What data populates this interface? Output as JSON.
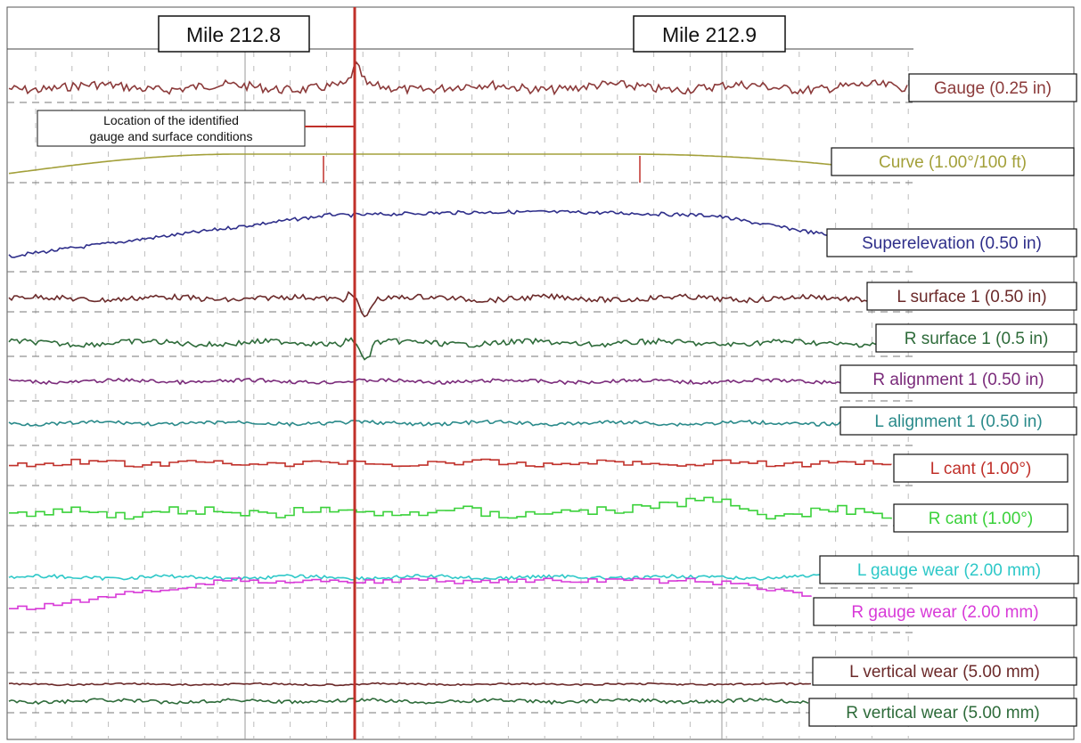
{
  "chart_data": {
    "type": "line",
    "title": "",
    "xlabel": "",
    "ylabel": "",
    "mileposts": [
      {
        "label": "Mile 212.8"
      },
      {
        "label": "Mile 212.9"
      }
    ],
    "annotation": {
      "text_line1": "Location of the identified",
      "text_line2": "gauge and surface conditions"
    },
    "grid": true,
    "legend": "right",
    "series": [
      {
        "name": "Gauge (0.25 in)",
        "color": "#8b3a3a"
      },
      {
        "name": "Curve (1.00°/100 ft)",
        "color": "#a3a03a"
      },
      {
        "name": "Superelevation (0.50 in)",
        "color": "#2e2e8a"
      },
      {
        "name": "L surface 1 (0.50 in)",
        "color": "#6b2a2a"
      },
      {
        "name": "R surface 1 (0.5 in)",
        "color": "#2e6b3a"
      },
      {
        "name": "R alignment 1 (0.50 in)",
        "color": "#7a2a7a"
      },
      {
        "name": "L alignment 1 (0.50 in)",
        "color": "#2a8a8a"
      },
      {
        "name": "L cant (1.00°)",
        "color": "#c0302a"
      },
      {
        "name": "R cant (1.00°)",
        "color": "#3ad13a"
      },
      {
        "name": "L gauge wear (2.00 mm)",
        "color": "#2ec8c8"
      },
      {
        "name": "R gauge wear (2.00 mm)",
        "color": "#d83ad8"
      },
      {
        "name": "L vertical wear (5.00 mm)",
        "color": "#6b2a2a"
      },
      {
        "name": "R vertical wear (5.00 mm)",
        "color": "#2e6b3a"
      }
    ]
  }
}
